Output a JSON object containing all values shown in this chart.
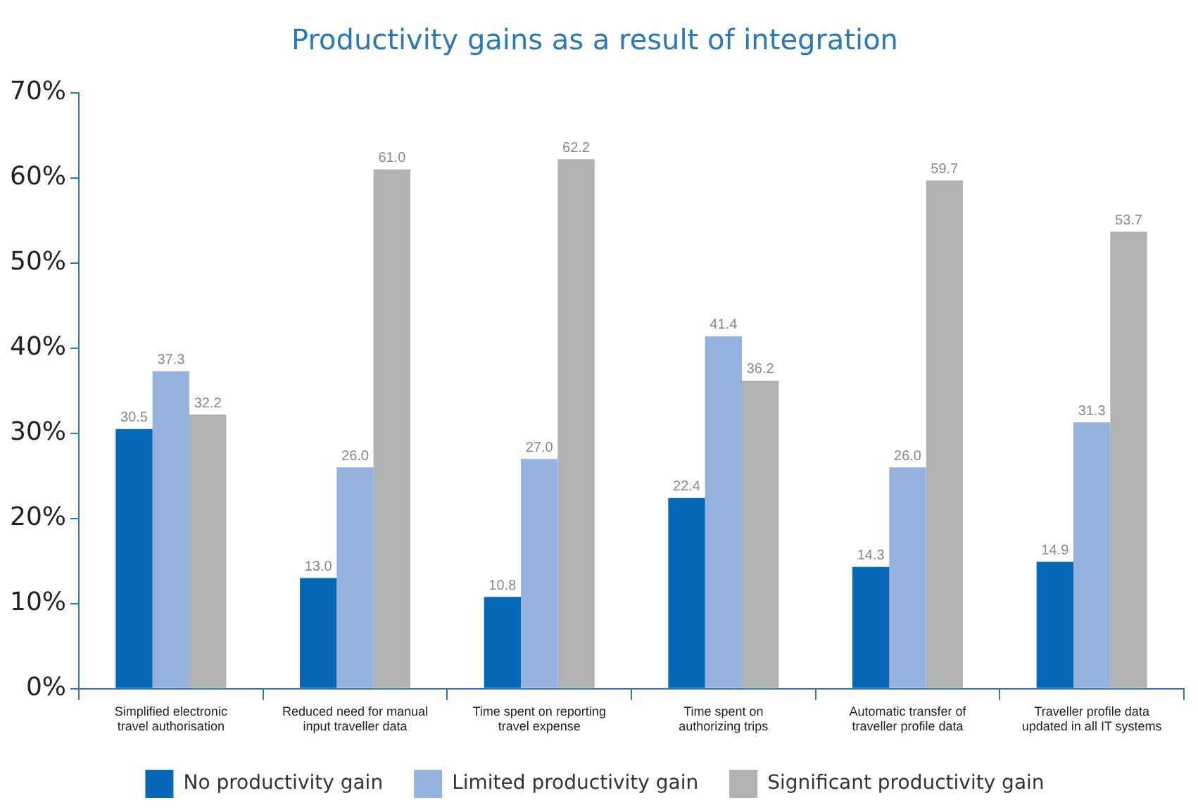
{
  "chart_data": {
    "type": "bar",
    "title": "Productivity gains as a result of integration",
    "categories": [
      "Simplified electronic travel authorisation",
      "Reduced need for manual input traveller data",
      "Time spent on reporting travel expense",
      "Time spent on authorizing trips",
      "Automatic transfer of traveller profile data",
      "Traveller profile data updated in all IT systems"
    ],
    "series": [
      {
        "name": "No productivity gain",
        "color": "#0868b8",
        "values": [
          30.5,
          13.0,
          10.8,
          22.4,
          14.3,
          14.9
        ],
        "value_labels": [
          "30.5",
          "13.0",
          "10.8",
          "22.4",
          "14.3",
          "14.9"
        ]
      },
      {
        "name": "Limited productivity gain",
        "color": "#95b3de",
        "values": [
          37.3,
          26.0,
          27.0,
          41.4,
          26.0,
          31.3
        ],
        "value_labels": [
          "37.3",
          "26.0",
          "27.0",
          "41.4",
          "26.0",
          "31.3"
        ]
      },
      {
        "name": "Significant productivity gain",
        "color": "#b1b2b4",
        "values": [
          32.2,
          61.0,
          62.2,
          36.2,
          59.7,
          53.7
        ],
        "value_labels": [
          "32.2",
          "61.0",
          "62.2",
          "36.2",
          "59.7",
          "53.7"
        ]
      }
    ],
    "ylim": [
      0,
      70
    ],
    "yticks": [
      {
        "value": 0,
        "label": "0%"
      },
      {
        "value": 10,
        "label": "10%"
      },
      {
        "value": 20,
        "label": "20%"
      },
      {
        "value": 30,
        "label": "30%"
      },
      {
        "value": 40,
        "label": "40%"
      },
      {
        "value": 50,
        "label": "50%"
      },
      {
        "value": 60,
        "label": "60%"
      },
      {
        "value": 70,
        "label": "70%"
      }
    ],
    "grid": false,
    "legend": "bottom"
  }
}
